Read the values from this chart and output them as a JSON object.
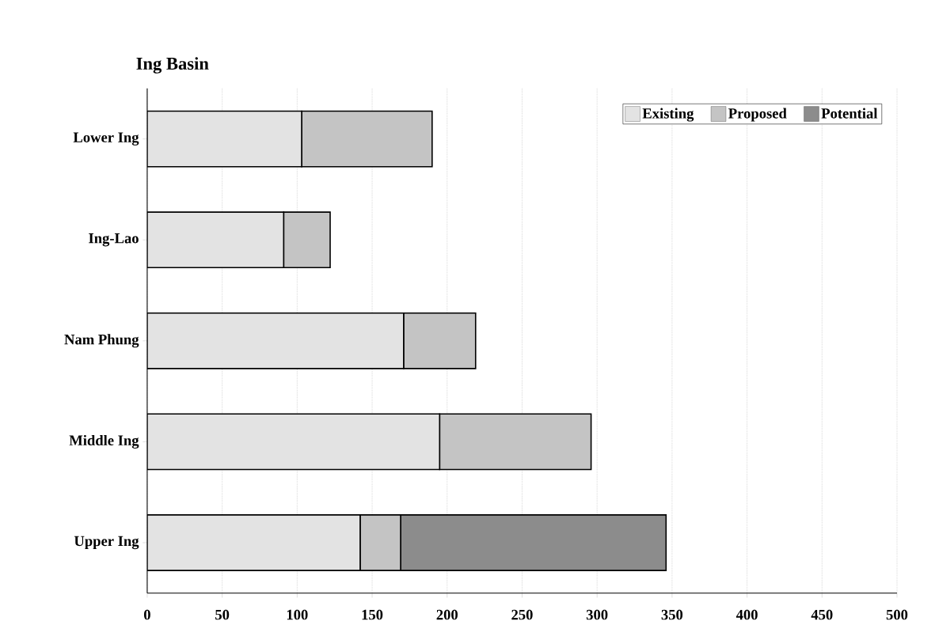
{
  "chart_data": {
    "type": "bar",
    "orientation": "horizontal",
    "stacked": true,
    "title": "Ing Basin",
    "categories": [
      "Lower Ing",
      "Ing-Lao",
      "Nam Phung",
      "Middle Ing",
      "Upper Ing"
    ],
    "series": [
      {
        "name": "Existing",
        "color": "#e3e3e3",
        "values": [
          103,
          91,
          171,
          195,
          142
        ]
      },
      {
        "name": "Proposed",
        "color": "#c4c4c4",
        "values": [
          87,
          31,
          48,
          101,
          27
        ]
      },
      {
        "name": "Potential",
        "color": "#8c8c8c",
        "values": [
          null,
          null,
          null,
          null,
          177
        ]
      }
    ],
    "xlim": [
      0,
      500
    ],
    "xticks": [
      0,
      50,
      100,
      150,
      200,
      250,
      300,
      350,
      400,
      450,
      500
    ],
    "grid": "x",
    "legend": "top right"
  }
}
